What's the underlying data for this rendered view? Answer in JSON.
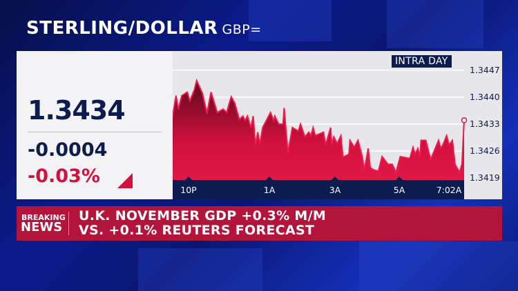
{
  "header": {
    "title": "STERLING/DOLLAR",
    "symbol": "GBP="
  },
  "quote": {
    "last": "1.3434",
    "change": "-0.0004",
    "change_pct": "-0.03%",
    "direction": "down"
  },
  "colors": {
    "navy": "#0c1c4e",
    "red": "#d3113f",
    "banner": "#b3143c"
  },
  "chart_data": {
    "type": "area",
    "badge": "INTRA DAY",
    "y_ticks": [
      "1.3447",
      "1.3440",
      "1.3433",
      "1.3426",
      "1.3419"
    ],
    "ylim": [
      1.3419,
      1.3447
    ],
    "x_ticks": [
      {
        "label": "10P",
        "time": "22:00"
      },
      {
        "label": "1A",
        "time": "01:00"
      },
      {
        "label": "3A",
        "time": "03:00"
      },
      {
        "label": "5A",
        "time": "05:00"
      },
      {
        "label": "7:02A",
        "time": "07:02"
      }
    ],
    "grid": true,
    "points": [
      [
        "21:24",
        1.34351
      ],
      [
        "21:32",
        1.34404
      ],
      [
        "21:37",
        1.34369
      ],
      [
        "21:45",
        1.34404
      ],
      [
        "21:57",
        1.34413
      ],
      [
        "22:03",
        1.3439
      ],
      [
        "22:13",
        1.34419
      ],
      [
        "22:18",
        1.34443
      ],
      [
        "22:31",
        1.3441
      ],
      [
        "22:41",
        1.34357
      ],
      [
        "22:50",
        1.34413
      ],
      [
        "23:04",
        1.3436
      ],
      [
        "23:17",
        1.34369
      ],
      [
        "23:25",
        1.3436
      ],
      [
        "23:30",
        1.34381
      ],
      [
        "23:35",
        1.34401
      ],
      [
        "23:43",
        1.34384
      ],
      [
        "23:53",
        1.34342
      ],
      [
        "00:01",
        1.34351
      ],
      [
        "00:06",
        1.34339
      ],
      [
        "00:11",
        1.34351
      ],
      [
        "00:19",
        1.34321
      ],
      [
        "00:24",
        1.34351
      ],
      [
        "00:29",
        1.34276
      ],
      [
        "00:34",
        1.34309
      ],
      [
        "00:39",
        1.34279
      ],
      [
        "00:45",
        1.34321
      ],
      [
        "01:02",
        1.3436
      ],
      [
        "01:08",
        1.34339
      ],
      [
        "01:10",
        1.34351
      ],
      [
        "01:17",
        1.3433
      ],
      [
        "01:25",
        1.3433
      ],
      [
        "01:27",
        1.34372
      ],
      [
        "01:34",
        1.34255
      ],
      [
        "01:42",
        1.34321
      ],
      [
        "01:53",
        1.34312
      ],
      [
        "01:57",
        1.3433
      ],
      [
        "02:05",
        1.34297
      ],
      [
        "02:12",
        1.34309
      ],
      [
        "02:16",
        1.343
      ],
      [
        "02:20",
        1.34321
      ],
      [
        "02:24",
        1.343
      ],
      [
        "02:39",
        1.34309
      ],
      [
        "02:43",
        1.34276
      ],
      [
        "02:52",
        1.34321
      ],
      [
        "02:54",
        1.34279
      ],
      [
        "02:58",
        1.34297
      ],
      [
        "03:04",
        1.34279
      ],
      [
        "03:11",
        1.343
      ],
      [
        "03:15",
        1.34244
      ],
      [
        "03:26",
        1.34252
      ],
      [
        "03:28",
        1.34288
      ],
      [
        "03:36",
        1.3427
      ],
      [
        "03:43",
        1.34288
      ],
      [
        "03:51",
        1.34246
      ],
      [
        "03:55",
        1.34211
      ],
      [
        "04:02",
        1.34267
      ],
      [
        "04:06",
        1.34217
      ],
      [
        "04:13",
        1.34211
      ],
      [
        "04:21",
        1.34208
      ],
      [
        "04:28",
        1.34246
      ],
      [
        "04:39",
        1.34226
      ],
      [
        "04:47",
        1.34226
      ],
      [
        "04:54",
        1.34205
      ],
      [
        "05:02",
        1.34246
      ],
      [
        "05:20",
        1.34241
      ],
      [
        "05:26",
        1.3427
      ],
      [
        "05:30",
        1.34252
      ],
      [
        "05:35",
        1.34267
      ],
      [
        "05:39",
        1.34244
      ],
      [
        "05:41",
        1.34288
      ],
      [
        "05:50",
        1.34288
      ],
      [
        "05:59",
        1.34238
      ],
      [
        "06:14",
        1.34288
      ],
      [
        "06:18",
        1.34267
      ],
      [
        "06:23",
        1.34279
      ],
      [
        "06:29",
        1.343
      ],
      [
        "06:34",
        1.34276
      ],
      [
        "06:40",
        1.34288
      ],
      [
        "06:45",
        1.34226
      ],
      [
        "06:53",
        1.34205
      ],
      [
        "06:58",
        1.34226
      ],
      [
        "07:02",
        1.3434
      ]
    ]
  },
  "breaking": {
    "label_top": "BREAKING",
    "label_bottom": "NEWS",
    "line1": "U.K. NOVEMBER GDP +0.3% M/M",
    "line2": "VS. +0.1% REUTERS FORECAST"
  }
}
